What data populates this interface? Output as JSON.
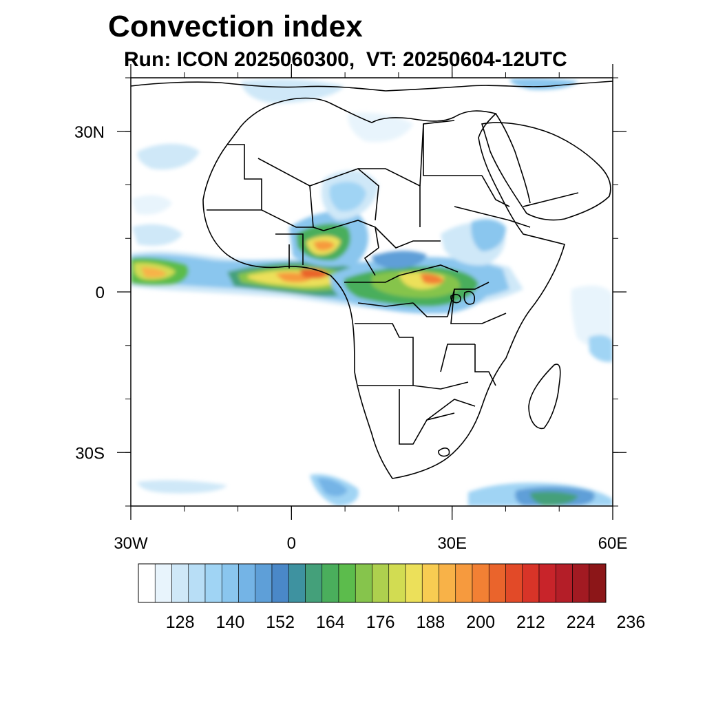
{
  "title": "Convection index",
  "subtitle": "Run: ICON 2025060300,  VT: 20250604-12UTC",
  "map": {
    "lon_range": [
      -30,
      60
    ],
    "lat_range": [
      -40,
      40
    ],
    "x_ticks": [
      {
        "lon": -30,
        "label": "30W"
      },
      {
        "lon": 0,
        "label": "0"
      },
      {
        "lon": 30,
        "label": "30E"
      },
      {
        "lon": 60,
        "label": "60E"
      }
    ],
    "y_ticks": [
      {
        "lat": 30,
        "label": "30N"
      },
      {
        "lat": 0,
        "label": "0"
      },
      {
        "lat": -30,
        "label": "30S"
      }
    ],
    "minor_lon_step": 10,
    "minor_lat_step": 10,
    "field_name": "convection index"
  },
  "colorbar": {
    "colors": [
      "#ffffff",
      "#e8f4fc",
      "#cfe8f8",
      "#b8def6",
      "#a0d4f4",
      "#8ac6ee",
      "#74b4e6",
      "#5e9fd8",
      "#4a88c8",
      "#3e92a0",
      "#44a07a",
      "#4aae5c",
      "#5cbc4c",
      "#86c44c",
      "#aed04e",
      "#d2dc52",
      "#ece05a",
      "#f8cc52",
      "#f8b248",
      "#f69a3e",
      "#f28034",
      "#ea642c",
      "#e24a28",
      "#d83428",
      "#c8242a",
      "#b41e28",
      "#a21a22",
      "#8c1618"
    ],
    "labels": [
      "128",
      "140",
      "152",
      "164",
      "176",
      "188",
      "200",
      "212",
      "224",
      "236"
    ]
  }
}
